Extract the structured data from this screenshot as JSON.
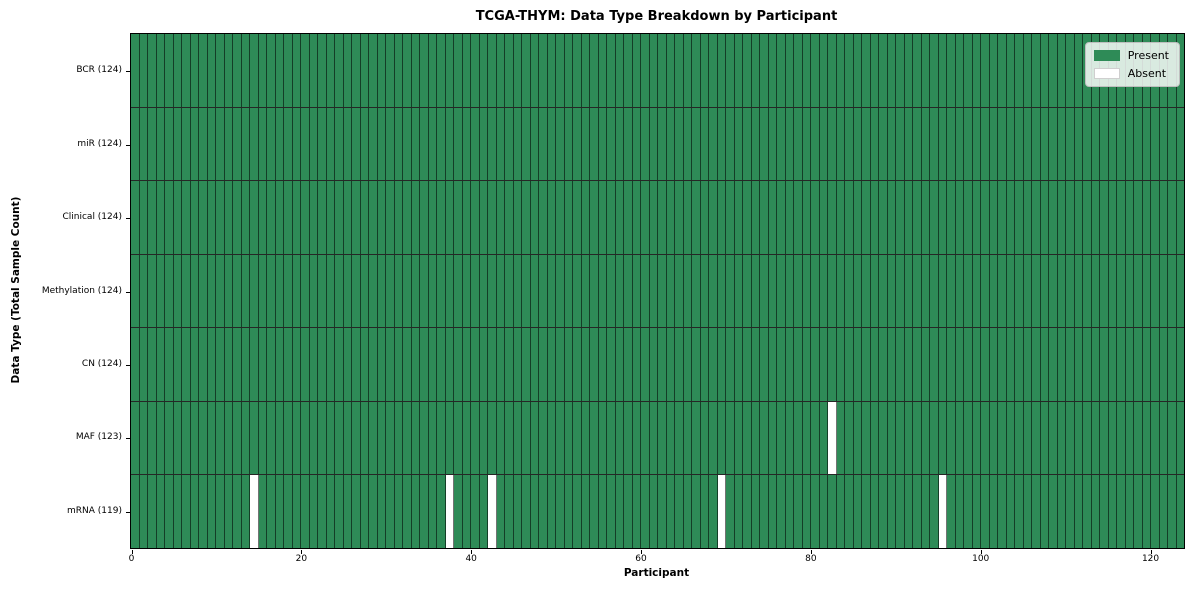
{
  "chart_data": {
    "type": "heatmap",
    "title": "TCGA-THYM: Data Type Breakdown by Participant",
    "xlabel": "Participant",
    "ylabel": "Data Type (Total Sample Count)",
    "xlim": [
      0,
      124
    ],
    "n_participants": 124,
    "x_ticks": [
      0,
      20,
      40,
      60,
      80,
      100,
      120
    ],
    "grid": "cell-borders",
    "legend": {
      "position": "upper-right",
      "present": "Present",
      "absent": "Absent"
    },
    "colors": {
      "present": "#2e8b57",
      "absent": "#ffffff",
      "cell_border": "rgba(0,0,0,0.55)"
    },
    "rows": [
      {
        "key": "bcr",
        "label": "BCR (124)",
        "data_type": "BCR",
        "present_count": 124,
        "absent_participants": []
      },
      {
        "key": "mir",
        "label": "miR (124)",
        "data_type": "miR",
        "present_count": 124,
        "absent_participants": []
      },
      {
        "key": "clinical",
        "label": "Clinical (124)",
        "data_type": "Clinical",
        "present_count": 124,
        "absent_participants": []
      },
      {
        "key": "methylation",
        "label": "Methylation (124)",
        "data_type": "Methylation",
        "present_count": 124,
        "absent_participants": []
      },
      {
        "key": "cn",
        "label": "CN (124)",
        "data_type": "CN",
        "present_count": 124,
        "absent_participants": []
      },
      {
        "key": "maf",
        "label": "MAF (123)",
        "data_type": "MAF",
        "present_count": 123,
        "absent_participants": [
          82
        ]
      },
      {
        "key": "mrna",
        "label": "mRNA (119)",
        "data_type": "mRNA",
        "present_count": 119,
        "absent_participants": [
          14,
          37,
          42,
          69,
          95
        ]
      }
    ]
  }
}
